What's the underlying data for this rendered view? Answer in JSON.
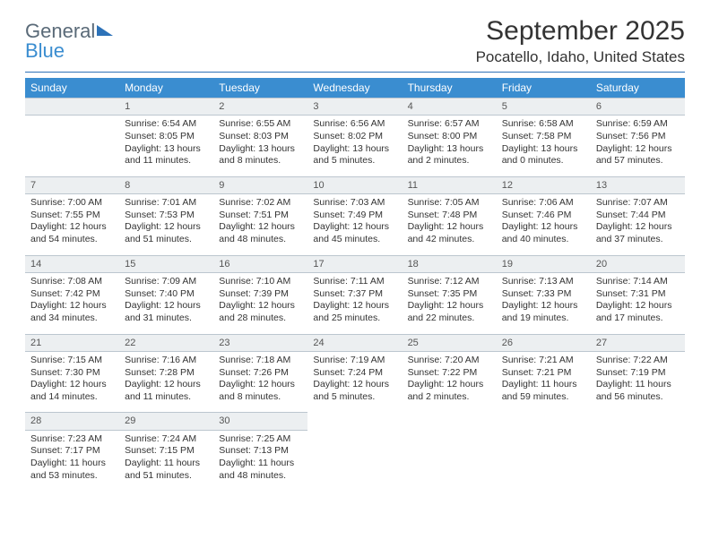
{
  "logo": {
    "word1": "General",
    "word2": "Blue"
  },
  "title": "September 2025",
  "location": "Pocatello, Idaho, United States",
  "colors": {
    "header_bar": "#3a8dd0",
    "daynum_bg": "#eceff1",
    "rule": "#2d72b8",
    "text": "#333333"
  },
  "dow": [
    "Sunday",
    "Monday",
    "Tuesday",
    "Wednesday",
    "Thursday",
    "Friday",
    "Saturday"
  ],
  "weeks": [
    [
      {
        "n": "",
        "sr": "",
        "ss": "",
        "dl": ""
      },
      {
        "n": "1",
        "sr": "Sunrise: 6:54 AM",
        "ss": "Sunset: 8:05 PM",
        "dl": "Daylight: 13 hours and 11 minutes."
      },
      {
        "n": "2",
        "sr": "Sunrise: 6:55 AM",
        "ss": "Sunset: 8:03 PM",
        "dl": "Daylight: 13 hours and 8 minutes."
      },
      {
        "n": "3",
        "sr": "Sunrise: 6:56 AM",
        "ss": "Sunset: 8:02 PM",
        "dl": "Daylight: 13 hours and 5 minutes."
      },
      {
        "n": "4",
        "sr": "Sunrise: 6:57 AM",
        "ss": "Sunset: 8:00 PM",
        "dl": "Daylight: 13 hours and 2 minutes."
      },
      {
        "n": "5",
        "sr": "Sunrise: 6:58 AM",
        "ss": "Sunset: 7:58 PM",
        "dl": "Daylight: 13 hours and 0 minutes."
      },
      {
        "n": "6",
        "sr": "Sunrise: 6:59 AM",
        "ss": "Sunset: 7:56 PM",
        "dl": "Daylight: 12 hours and 57 minutes."
      }
    ],
    [
      {
        "n": "7",
        "sr": "Sunrise: 7:00 AM",
        "ss": "Sunset: 7:55 PM",
        "dl": "Daylight: 12 hours and 54 minutes."
      },
      {
        "n": "8",
        "sr": "Sunrise: 7:01 AM",
        "ss": "Sunset: 7:53 PM",
        "dl": "Daylight: 12 hours and 51 minutes."
      },
      {
        "n": "9",
        "sr": "Sunrise: 7:02 AM",
        "ss": "Sunset: 7:51 PM",
        "dl": "Daylight: 12 hours and 48 minutes."
      },
      {
        "n": "10",
        "sr": "Sunrise: 7:03 AM",
        "ss": "Sunset: 7:49 PM",
        "dl": "Daylight: 12 hours and 45 minutes."
      },
      {
        "n": "11",
        "sr": "Sunrise: 7:05 AM",
        "ss": "Sunset: 7:48 PM",
        "dl": "Daylight: 12 hours and 42 minutes."
      },
      {
        "n": "12",
        "sr": "Sunrise: 7:06 AM",
        "ss": "Sunset: 7:46 PM",
        "dl": "Daylight: 12 hours and 40 minutes."
      },
      {
        "n": "13",
        "sr": "Sunrise: 7:07 AM",
        "ss": "Sunset: 7:44 PM",
        "dl": "Daylight: 12 hours and 37 minutes."
      }
    ],
    [
      {
        "n": "14",
        "sr": "Sunrise: 7:08 AM",
        "ss": "Sunset: 7:42 PM",
        "dl": "Daylight: 12 hours and 34 minutes."
      },
      {
        "n": "15",
        "sr": "Sunrise: 7:09 AM",
        "ss": "Sunset: 7:40 PM",
        "dl": "Daylight: 12 hours and 31 minutes."
      },
      {
        "n": "16",
        "sr": "Sunrise: 7:10 AM",
        "ss": "Sunset: 7:39 PM",
        "dl": "Daylight: 12 hours and 28 minutes."
      },
      {
        "n": "17",
        "sr": "Sunrise: 7:11 AM",
        "ss": "Sunset: 7:37 PM",
        "dl": "Daylight: 12 hours and 25 minutes."
      },
      {
        "n": "18",
        "sr": "Sunrise: 7:12 AM",
        "ss": "Sunset: 7:35 PM",
        "dl": "Daylight: 12 hours and 22 minutes."
      },
      {
        "n": "19",
        "sr": "Sunrise: 7:13 AM",
        "ss": "Sunset: 7:33 PM",
        "dl": "Daylight: 12 hours and 19 minutes."
      },
      {
        "n": "20",
        "sr": "Sunrise: 7:14 AM",
        "ss": "Sunset: 7:31 PM",
        "dl": "Daylight: 12 hours and 17 minutes."
      }
    ],
    [
      {
        "n": "21",
        "sr": "Sunrise: 7:15 AM",
        "ss": "Sunset: 7:30 PM",
        "dl": "Daylight: 12 hours and 14 minutes."
      },
      {
        "n": "22",
        "sr": "Sunrise: 7:16 AM",
        "ss": "Sunset: 7:28 PM",
        "dl": "Daylight: 12 hours and 11 minutes."
      },
      {
        "n": "23",
        "sr": "Sunrise: 7:18 AM",
        "ss": "Sunset: 7:26 PM",
        "dl": "Daylight: 12 hours and 8 minutes."
      },
      {
        "n": "24",
        "sr": "Sunrise: 7:19 AM",
        "ss": "Sunset: 7:24 PM",
        "dl": "Daylight: 12 hours and 5 minutes."
      },
      {
        "n": "25",
        "sr": "Sunrise: 7:20 AM",
        "ss": "Sunset: 7:22 PM",
        "dl": "Daylight: 12 hours and 2 minutes."
      },
      {
        "n": "26",
        "sr": "Sunrise: 7:21 AM",
        "ss": "Sunset: 7:21 PM",
        "dl": "Daylight: 11 hours and 59 minutes."
      },
      {
        "n": "27",
        "sr": "Sunrise: 7:22 AM",
        "ss": "Sunset: 7:19 PM",
        "dl": "Daylight: 11 hours and 56 minutes."
      }
    ],
    [
      {
        "n": "28",
        "sr": "Sunrise: 7:23 AM",
        "ss": "Sunset: 7:17 PM",
        "dl": "Daylight: 11 hours and 53 minutes."
      },
      {
        "n": "29",
        "sr": "Sunrise: 7:24 AM",
        "ss": "Sunset: 7:15 PM",
        "dl": "Daylight: 11 hours and 51 minutes."
      },
      {
        "n": "30",
        "sr": "Sunrise: 7:25 AM",
        "ss": "Sunset: 7:13 PM",
        "dl": "Daylight: 11 hours and 48 minutes."
      },
      {
        "n": "",
        "sr": "",
        "ss": "",
        "dl": ""
      },
      {
        "n": "",
        "sr": "",
        "ss": "",
        "dl": ""
      },
      {
        "n": "",
        "sr": "",
        "ss": "",
        "dl": ""
      },
      {
        "n": "",
        "sr": "",
        "ss": "",
        "dl": ""
      }
    ]
  ]
}
